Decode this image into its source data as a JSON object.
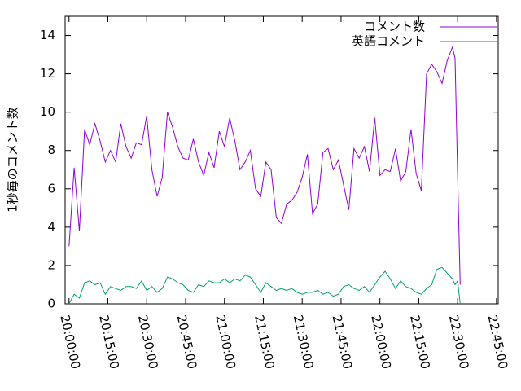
{
  "chart_data": {
    "type": "line",
    "ylabel": "1秒毎のコメント数",
    "x": [
      "20:00:00",
      "20:02:00",
      "20:04:00",
      "20:06:00",
      "20:08:00",
      "20:10:00",
      "20:12:00",
      "20:14:00",
      "20:16:00",
      "20:18:00",
      "20:20:00",
      "20:22:00",
      "20:24:00",
      "20:26:00",
      "20:28:00",
      "20:30:00",
      "20:32:00",
      "20:34:00",
      "20:36:00",
      "20:38:00",
      "20:40:00",
      "20:42:00",
      "20:44:00",
      "20:46:00",
      "20:48:00",
      "20:50:00",
      "20:52:00",
      "20:54:00",
      "20:56:00",
      "20:58:00",
      "21:00:00",
      "21:02:00",
      "21:04:00",
      "21:06:00",
      "21:08:00",
      "21:10:00",
      "21:12:00",
      "21:14:00",
      "21:16:00",
      "21:18:00",
      "21:20:00",
      "21:22:00",
      "21:24:00",
      "21:26:00",
      "21:28:00",
      "21:30:00",
      "21:32:00",
      "21:34:00",
      "21:36:00",
      "21:38:00",
      "21:40:00",
      "21:42:00",
      "21:44:00",
      "21:46:00",
      "21:48:00",
      "21:50:00",
      "21:52:00",
      "21:54:00",
      "21:56:00",
      "21:58:00",
      "22:00:00",
      "22:02:00",
      "22:04:00",
      "22:06:00",
      "22:08:00",
      "22:10:00",
      "22:12:00",
      "22:14:00",
      "22:16:00",
      "22:18:00",
      "22:20:00",
      "22:22:00",
      "22:24:00",
      "22:26:00",
      "22:28:00",
      "22:29:00",
      "22:30:00",
      "22:31:00"
    ],
    "series": [
      {
        "name": "コメント数",
        "color": "#9400d3",
        "values": [
          3.0,
          7.1,
          3.8,
          9.1,
          8.3,
          9.4,
          8.5,
          7.4,
          8.0,
          7.4,
          9.4,
          8.2,
          7.6,
          8.4,
          8.3,
          9.8,
          7.0,
          5.6,
          6.6,
          10.0,
          9.2,
          8.2,
          7.6,
          7.5,
          8.6,
          7.4,
          6.7,
          7.9,
          7.1,
          9.0,
          8.2,
          9.7,
          8.5,
          7.0,
          7.4,
          8.0,
          6.0,
          5.6,
          7.4,
          7.0,
          4.5,
          4.2,
          5.2,
          5.4,
          5.8,
          6.6,
          7.8,
          4.7,
          5.2,
          7.9,
          8.1,
          7.0,
          7.5,
          6.2,
          4.9,
          8.1,
          7.6,
          8.2,
          6.9,
          9.7,
          6.7,
          7.0,
          6.9,
          8.1,
          6.4,
          6.9,
          9.1,
          6.8,
          5.9,
          12.0,
          12.5,
          12.1,
          11.5,
          12.7,
          13.4,
          12.8,
          6.8,
          1.0
        ]
      },
      {
        "name": "英語コメント",
        "color": "#009e73",
        "values": [
          0.0,
          0.5,
          0.3,
          1.1,
          1.2,
          1.0,
          1.1,
          0.5,
          0.9,
          0.8,
          0.7,
          0.9,
          0.9,
          0.8,
          1.2,
          0.7,
          0.9,
          0.6,
          0.8,
          1.4,
          1.3,
          1.1,
          1.0,
          0.7,
          0.6,
          1.0,
          0.9,
          1.2,
          1.1,
          1.1,
          1.3,
          1.1,
          1.3,
          1.2,
          1.5,
          1.4,
          1.0,
          0.6,
          1.1,
          0.9,
          0.7,
          0.8,
          0.7,
          0.8,
          0.6,
          0.5,
          0.6,
          0.6,
          0.7,
          0.5,
          0.6,
          0.4,
          0.5,
          0.9,
          1.0,
          0.8,
          0.7,
          0.9,
          0.6,
          1.0,
          1.4,
          1.7,
          1.3,
          0.8,
          1.2,
          0.9,
          0.8,
          0.6,
          0.5,
          0.8,
          1.0,
          1.8,
          1.9,
          1.6,
          1.3,
          1.0,
          1.2,
          0.0
        ]
      }
    ],
    "xlim": [
      "19:58:30",
      "22:45:40"
    ],
    "xticks": [
      "20:00:00",
      "20:15:00",
      "20:30:00",
      "20:45:00",
      "21:00:00",
      "21:15:00",
      "21:30:00",
      "21:45:00",
      "22:00:00",
      "22:15:00",
      "22:30:00",
      "22:45:00"
    ],
    "ylim": [
      0,
      15
    ],
    "yticks": [
      0,
      2,
      4,
      6,
      8,
      10,
      12,
      14
    ],
    "legend": "top-right"
  }
}
